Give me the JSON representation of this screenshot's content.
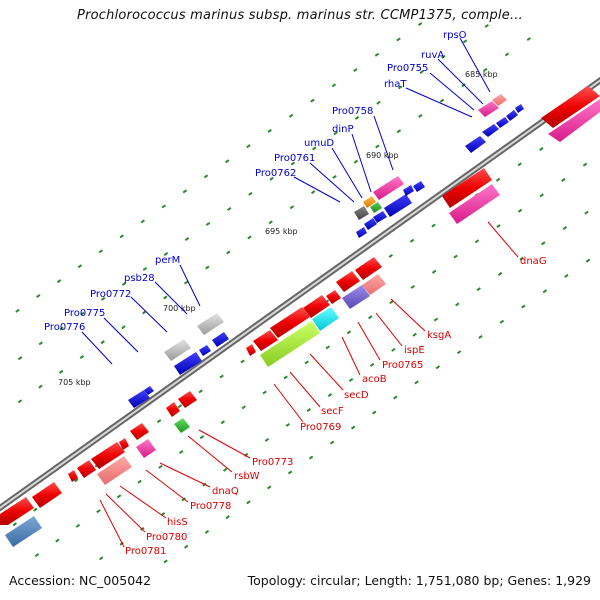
{
  "map": {
    "title": "Prochlorococcus marinus subsp. marinus str. CCMP1375, comple...",
    "accession": "Accession: NC_005042",
    "summary": "Topology: circular; Length: 1,751,080 bp; Genes: 1,929"
  },
  "colors": {
    "backbone": "#8c8c8c",
    "forward_label": "#0000cc",
    "reverse_label": "#dd0000",
    "tick": "#2a8a2a"
  },
  "position_markers": [
    "685 kbp",
    "690 kbp",
    "695 kbp",
    "700 kbp",
    "705 kbp"
  ],
  "forward_labels": [
    "rpsO",
    "ruvA",
    "Pro0755",
    "rhaT",
    "Pro0758",
    "dinP",
    "umuD",
    "Pro0761",
    "Pro0762",
    "perM",
    "psb28",
    "Pro0772",
    "Pro0775",
    "Pro0776"
  ],
  "reverse_labels": [
    "dnaG",
    "ksgA",
    "ispE",
    "Pro0765",
    "acoB",
    "secD",
    "secF",
    "Pro0769",
    "Pro0773",
    "rsbW",
    "dnaQ",
    "Pro0778",
    "hisS",
    "Pro0780",
    "Pro0781"
  ]
}
